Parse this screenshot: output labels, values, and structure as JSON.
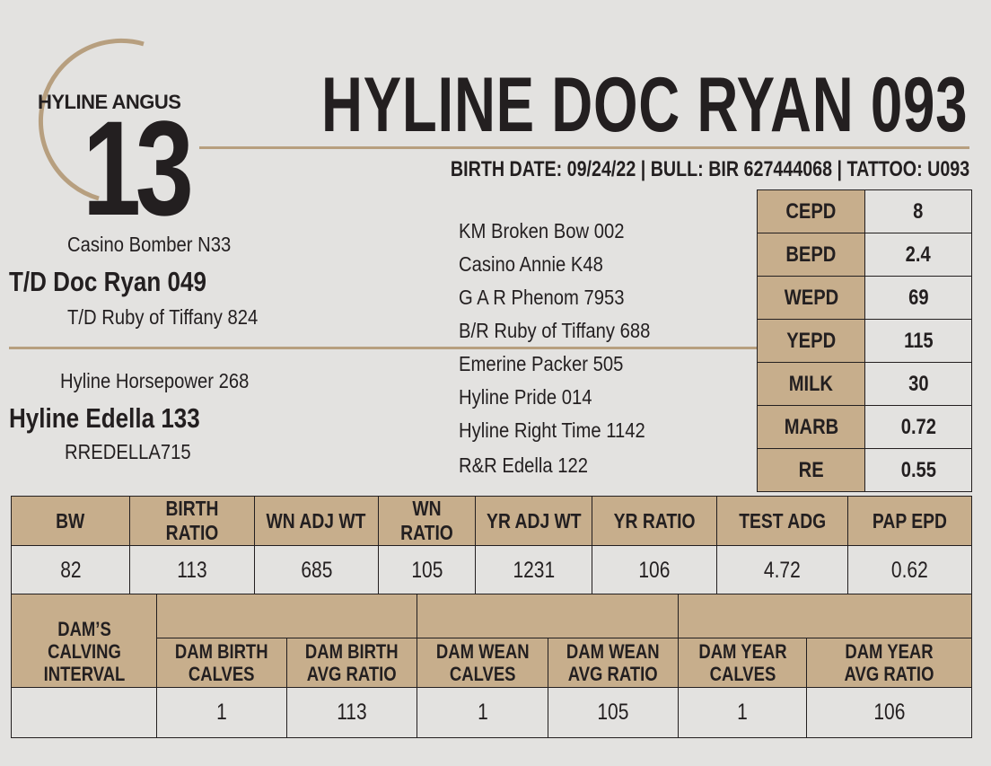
{
  "header": {
    "brand": "HYLINE ANGUS",
    "lot_number": "13",
    "title": "HYLINE DOC RYAN 093",
    "info_line": "BIRTH DATE: 09/24/22 | BULL:  BIR 627444068 | TATTOO: U093"
  },
  "pedigree": {
    "sire": "T/D Doc Ryan 049",
    "sire_sire": "Casino Bomber N33",
    "sire_dam": "T/D Ruby of Tiffany 824",
    "dam": "Hyline Edella 133",
    "dam_sire": "Hyline Horsepower 268",
    "dam_dam": "RREDELLA715",
    "third_generation": [
      "KM Broken Bow 002",
      "Casino Annie K48",
      "G A R Phenom 7953",
      "B/R Ruby of Tiffany 688",
      "Emerine Packer 505",
      "Hyline Pride 014",
      "Hyline Right Time 1142",
      "R&R Edella 122"
    ]
  },
  "epd_table": [
    {
      "label": "CEPD",
      "value": "8"
    },
    {
      "label": "BEPD",
      "value": "2.4"
    },
    {
      "label": "WEPD",
      "value": "69"
    },
    {
      "label": "YEPD",
      "value": "115"
    },
    {
      "label": "MILK",
      "value": "30"
    },
    {
      "label": "MARB",
      "value": "0.72"
    },
    {
      "label": "RE",
      "value": "0.55"
    }
  ],
  "performance": {
    "headers": [
      "BW",
      "BIRTH RATIO",
      "WN ADJ WT",
      "WN RATIO",
      "YR ADJ WT",
      "YR RATIO",
      "TEST ADG",
      "PAP EPD"
    ],
    "values": [
      "82",
      "113",
      "685",
      "105",
      "1231",
      "106",
      "4.72",
      "0.62"
    ]
  },
  "dam_record": {
    "interval_label": "DAM’S CALVING INTERVAL",
    "interval_value": "",
    "headers": [
      {
        "l1": "DAM BIRTH",
        "l2": "CALVES"
      },
      {
        "l1": "DAM BIRTH",
        "l2": "AVG RATIO"
      },
      {
        "l1": "DAM WEAN",
        "l2": "CALVES"
      },
      {
        "l1": "DAM WEAN",
        "l2": "AVG RATIO"
      },
      {
        "l1": "DAM YEAR",
        "l2": "CALVES"
      },
      {
        "l1": "DAM YEAR",
        "l2": "AVG RATIO"
      }
    ],
    "values": [
      "1",
      "113",
      "1",
      "105",
      "1",
      "106"
    ]
  },
  "colors": {
    "tan": "#c7ae8c",
    "rule": "#b79f7f",
    "background": "#e3e2e0",
    "text": "#231f20"
  }
}
